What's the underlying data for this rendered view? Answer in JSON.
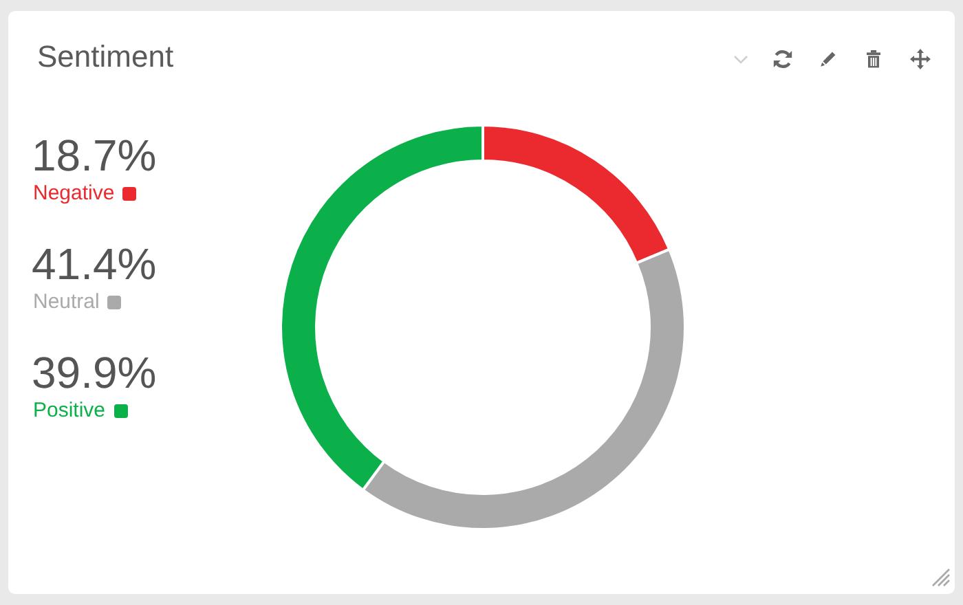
{
  "chart_data": {
    "type": "donut",
    "title": "Sentiment",
    "categories": [
      "Negative",
      "Neutral",
      "Positive"
    ],
    "values": [
      18.7,
      41.4,
      39.9
    ],
    "value_labels": [
      "18.7%",
      "41.4%",
      "39.9%"
    ],
    "colors": [
      "#ea2a2e",
      "#aaaaaa",
      "#0cb04a"
    ],
    "legend": "left"
  }
}
